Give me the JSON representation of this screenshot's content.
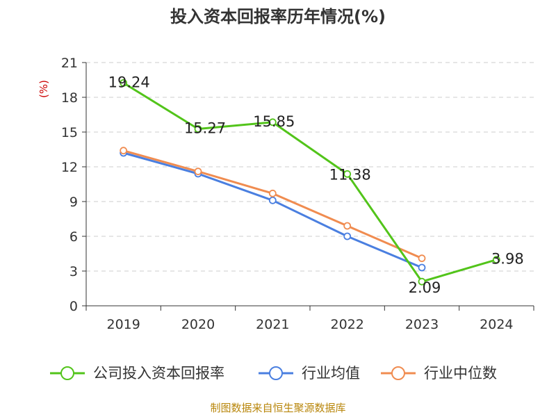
{
  "chart_data": {
    "type": "line",
    "title": "投入资本回报率历年情况(%)",
    "ylabel": "(%)",
    "xlabel": "",
    "categories": [
      "2019",
      "2020",
      "2021",
      "2022",
      "2023",
      "2024"
    ],
    "ylim": [
      0,
      21
    ],
    "yticks": [
      0,
      3,
      6,
      9,
      12,
      15,
      18,
      21
    ],
    "grid": true,
    "legend_position": "bottom",
    "series": [
      {
        "name": "公司投入资本回报率",
        "color": "#52c41a",
        "values": [
          19.24,
          15.27,
          15.85,
          11.38,
          2.09,
          3.98
        ],
        "labels": [
          "19.24",
          "15.27",
          "15.85",
          "11.38",
          "2.09",
          "3.98"
        ]
      },
      {
        "name": "行业均值",
        "color": "#4a7fe0",
        "values": [
          13.2,
          11.4,
          9.1,
          6.0,
          3.3,
          null
        ]
      },
      {
        "name": "行业中位数",
        "color": "#f08c50",
        "values": [
          13.4,
          11.6,
          9.7,
          6.9,
          4.1,
          null
        ]
      }
    ],
    "source": "制图数据来自恒生聚源数据库",
    "colors": {
      "axis": "#333333",
      "grid": "#cccccc",
      "ylabel": "#cc0000",
      "source": "#b8860b"
    }
  }
}
